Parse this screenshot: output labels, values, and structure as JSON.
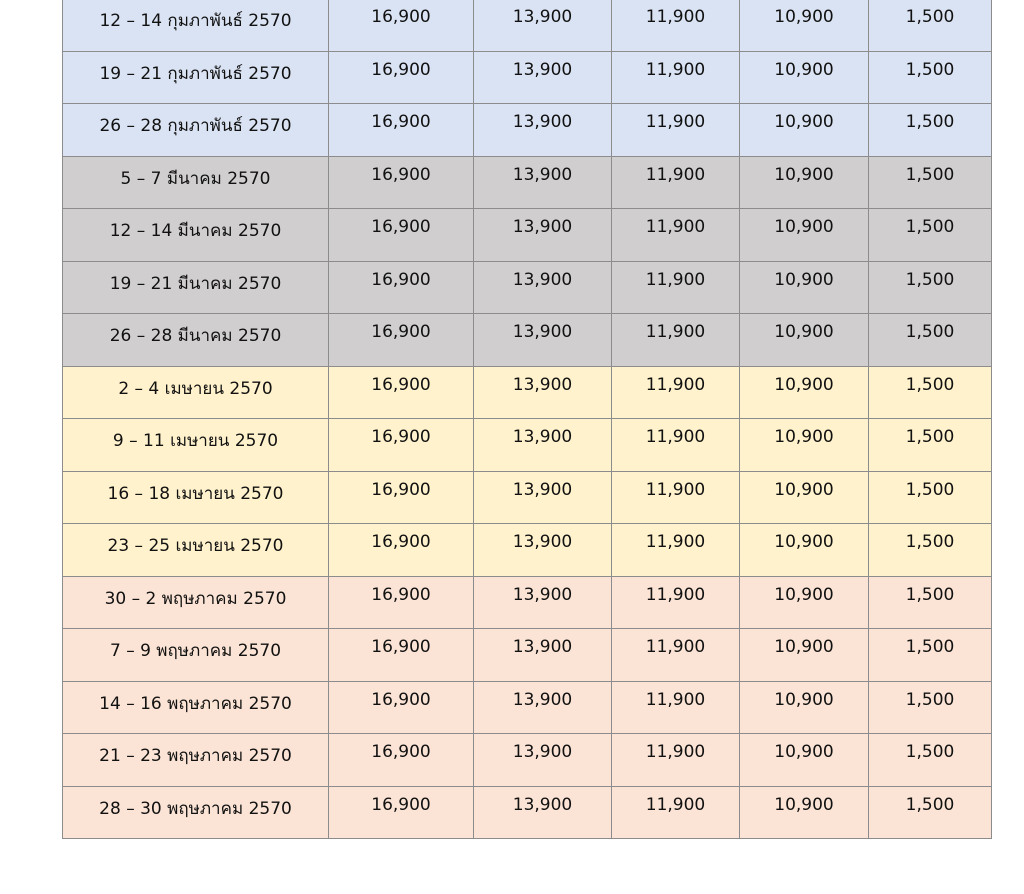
{
  "table": {
    "groups": [
      {
        "color": "#dae3f3",
        "rows": [
          [
            "12 – 14 กุมภาพันธ์ 2570",
            "16,900",
            "13,900",
            "11,900",
            "10,900",
            "1,500"
          ],
          [
            "19 – 21 กุมภาพันธ์ 2570",
            "16,900",
            "13,900",
            "11,900",
            "10,900",
            "1,500"
          ],
          [
            "26 – 28 กุมภาพันธ์ 2570",
            "16,900",
            "13,900",
            "11,900",
            "10,900",
            "1,500"
          ]
        ]
      },
      {
        "color": "#d0cece",
        "rows": [
          [
            "5 – 7 มีนาคม 2570",
            "16,900",
            "13,900",
            "11,900",
            "10,900",
            "1,500"
          ],
          [
            "12 – 14 มีนาคม 2570",
            "16,900",
            "13,900",
            "11,900",
            "10,900",
            "1,500"
          ],
          [
            "19 – 21 มีนาคม 2570",
            "16,900",
            "13,900",
            "11,900",
            "10,900",
            "1,500"
          ],
          [
            "26 – 28 มีนาคม 2570",
            "16,900",
            "13,900",
            "11,900",
            "10,900",
            "1,500"
          ]
        ]
      },
      {
        "color": "#fff2cc",
        "rows": [
          [
            "2 – 4 เมษายน 2570",
            "16,900",
            "13,900",
            "11,900",
            "10,900",
            "1,500"
          ],
          [
            "9 – 11 เมษายน 2570",
            "16,900",
            "13,900",
            "11,900",
            "10,900",
            "1,500"
          ],
          [
            "16 – 18 เมษายน 2570",
            "16,900",
            "13,900",
            "11,900",
            "10,900",
            "1,500"
          ],
          [
            "23 – 25 เมษายน 2570",
            "16,900",
            "13,900",
            "11,900",
            "10,900",
            "1,500"
          ]
        ]
      },
      {
        "color": "#fbe4d5",
        "rows": [
          [
            "30 – 2 พฤษภาคม 2570",
            "16,900",
            "13,900",
            "11,900",
            "10,900",
            "1,500"
          ],
          [
            "7 – 9 พฤษภาคม 2570",
            "16,900",
            "13,900",
            "11,900",
            "10,900",
            "1,500"
          ],
          [
            "14 – 16 พฤษภาคม 2570",
            "16,900",
            "13,900",
            "11,900",
            "10,900",
            "1,500"
          ],
          [
            "21 – 23 พฤษภาคม 2570",
            "16,900",
            "13,900",
            "11,900",
            "10,900",
            "1,500"
          ],
          [
            "28 – 30 พฤษภาคม 2570",
            "16,900",
            "13,900",
            "11,900",
            "10,900",
            "1,500"
          ]
        ]
      }
    ]
  }
}
